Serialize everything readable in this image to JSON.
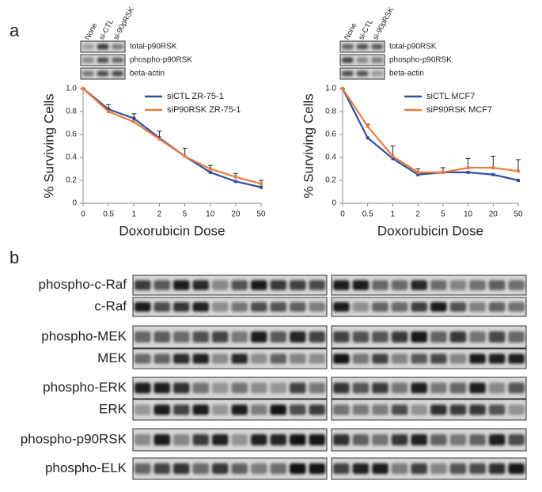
{
  "panel_labels": [
    "a",
    "b"
  ],
  "chart_data": [
    {
      "type": "line",
      "x_label": "Doxorubicin Dose",
      "y_label": "% Surviving Cells",
      "categories": [
        "0",
        "0.5",
        "1",
        "2",
        "5",
        "10",
        "20",
        "50"
      ],
      "ylim": [
        0,
        1
      ],
      "yticks": [
        0,
        0.2,
        0.4,
        0.6,
        0.8,
        {
          "value": 1,
          "label": "1.0"
        }
      ],
      "legend": "upper right",
      "series": [
        {
          "name": "siCTL ZR-75-1",
          "color": "#2e4fa0",
          "values": [
            1,
            0.82,
            0.74,
            0.57,
            0.41,
            0.27,
            0.19,
            0.14
          ]
        },
        {
          "name": "siP90RSK ZR-75-1",
          "color": "#ec7c3c",
          "values": [
            1,
            0.8,
            0.71,
            0.56,
            0.41,
            0.3,
            0.23,
            0.17
          ],
          "errors": [
            0,
            0.06,
            0.07,
            0.07,
            0.07,
            0.03,
            0.03,
            0.03
          ]
        }
      ],
      "blot": {
        "lanes": [
          "None",
          "si-CTL",
          "si-90pRSK"
        ],
        "bands": [
          "total-p90RSK",
          "phospho-p90RSK",
          "beta-actin"
        ]
      }
    },
    {
      "type": "line",
      "x_label": "Doxorubicin Dose",
      "y_label": "% Surviving Cells",
      "categories": [
        "0",
        "0.5",
        "1",
        "2",
        "5",
        "10",
        "20",
        "50"
      ],
      "ylim": [
        0,
        1
      ],
      "yticks": [
        0,
        0.2,
        0.4,
        0.6,
        0.8,
        {
          "value": 1,
          "label": "1.0"
        }
      ],
      "legend": "upper right",
      "series": [
        {
          "name": "siCTL MCF7",
          "color": "#2e4fa0",
          "values": [
            1,
            0.57,
            0.39,
            0.25,
            0.27,
            0.27,
            0.25,
            0.2
          ]
        },
        {
          "name": "siP90RSK MCF7",
          "color": "#ec7c3c",
          "values": [
            1,
            0.67,
            0.41,
            0.27,
            0.27,
            0.31,
            0.31,
            0.28
          ],
          "errors": [
            0,
            0.02,
            0.09,
            0.03,
            0.04,
            0.08,
            0.1,
            0.1
          ]
        }
      ],
      "blot": {
        "lanes": [
          "None",
          "si-CTL",
          "si-90pRSK"
        ],
        "bands": [
          "total-p90RSK",
          "phospho-p90RSK",
          "beta-actin"
        ]
      }
    }
  ],
  "blot_rows": [
    "phospho-c-Raf",
    "c-Raf",
    "phospho-MEK",
    "MEK",
    "phospho-ERK",
    "ERK",
    "phospho-p90RSK",
    "phospho-ELK"
  ]
}
